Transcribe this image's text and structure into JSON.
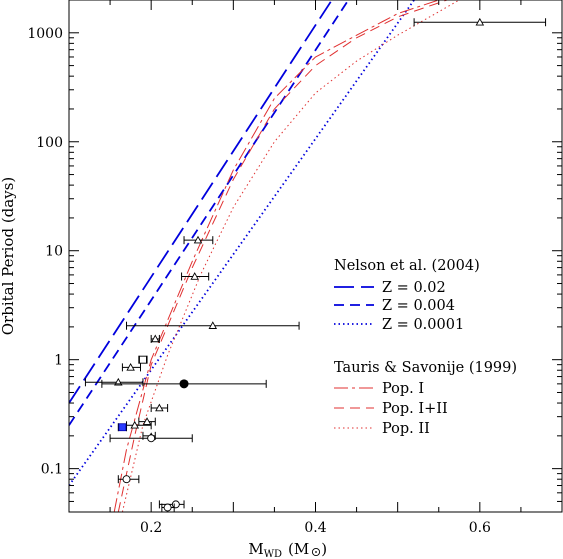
{
  "chart_data": {
    "type": "line",
    "title": "",
    "xlabel_main": "M",
    "xlabel_sub": "WD",
    "xlabel_unit_pre": "(M",
    "xlabel_unit_post": ")",
    "ylabel": "Orbital Period (days)",
    "xlim": [
      0.1,
      0.7
    ],
    "ylim": [
      0.04,
      2000
    ],
    "yscale": "log",
    "x_ticks": [
      0.2,
      0.4,
      0.6
    ],
    "x_tick_labels": [
      "0.2",
      "0.4",
      "0.6"
    ],
    "y_ticks": [
      0.1,
      1,
      10,
      100,
      1000
    ],
    "y_tick_labels": [
      "0.1",
      "1",
      "10",
      "100",
      "1000"
    ],
    "grid": false,
    "legend_placement": "right",
    "legend_groups": [
      {
        "title": "Nelson et al. (2004)",
        "entries": [
          "Z = 0.02",
          "Z = 0.004",
          "Z = 0.0001"
        ]
      },
      {
        "title": "Tauris & Savonije (1999)",
        "entries": [
          "Pop. I",
          "Pop. I+II",
          "Pop. II"
        ]
      }
    ],
    "series": [
      {
        "name": "Z = 0.02",
        "color": "#0000dd",
        "dash": "long",
        "x": [
          0.1,
          0.42
        ],
        "y": [
          0.4,
          2000
        ]
      },
      {
        "name": "Z = 0.004",
        "color": "#0000dd",
        "dash": "medium",
        "x": [
          0.1,
          0.44
        ],
        "y": [
          0.25,
          2000
        ]
      },
      {
        "name": "Z = 0.0001",
        "color": "#0000dd",
        "dash": "dotted",
        "x": [
          0.1,
          0.52
        ],
        "y": [
          0.07,
          2000
        ]
      },
      {
        "name": "Pop. I",
        "color": "#e03030",
        "dash": "longshort",
        "x": [
          0.155,
          0.17,
          0.2,
          0.25,
          0.3,
          0.35,
          0.4,
          0.45,
          0.5,
          0.55
        ],
        "y": [
          0.04,
          0.15,
          1.0,
          8.0,
          55,
          250,
          600,
          950,
          1500,
          2000
        ]
      },
      {
        "name": "Pop. I+II",
        "color": "#e03030",
        "dash": "medium",
        "x": [
          0.16,
          0.18,
          0.2,
          0.25,
          0.3,
          0.35,
          0.4,
          0.45,
          0.5,
          0.56
        ],
        "y": [
          0.04,
          0.2,
          0.9,
          7.0,
          45,
          200,
          500,
          900,
          1400,
          2000
        ]
      },
      {
        "name": "Pop. II",
        "color": "#e03030",
        "dash": "dotted",
        "x": [
          0.165,
          0.19,
          0.22,
          0.26,
          0.3,
          0.35,
          0.4,
          0.45,
          0.5,
          0.575
        ],
        "y": [
          0.04,
          0.25,
          1.1,
          6.0,
          25,
          100,
          280,
          550,
          950,
          2000
        ]
      }
    ],
    "points": [
      {
        "x": 0.6,
        "y": 1250,
        "xerr": [
          0.52,
          0.68
        ],
        "marker": "triangle"
      },
      {
        "x": 0.257,
        "y": 12.5,
        "xerr": [
          0.24,
          0.275
        ],
        "marker": "triangle"
      },
      {
        "x": 0.253,
        "y": 5.8,
        "xerr": [
          0.237,
          0.27
        ],
        "marker": "triangle"
      },
      {
        "x": 0.275,
        "y": 2.05,
        "xerr": [
          0.17,
          0.38
        ],
        "marker": "triangle"
      },
      {
        "x": 0.205,
        "y": 1.55,
        "xerr": [
          0.2,
          0.21
        ],
        "marker": "triangle"
      },
      {
        "x": 0.19,
        "y": 1.0,
        "xerr": [
          0.185,
          0.195
        ],
        "marker": "open-square"
      },
      {
        "x": 0.175,
        "y": 0.85,
        "xerr": [
          0.165,
          0.187
        ],
        "marker": "triangle"
      },
      {
        "x": 0.16,
        "y": 0.62,
        "xerr": [
          0.12,
          0.19
        ],
        "marker": "triangle"
      },
      {
        "x": 0.24,
        "y": 0.6,
        "xerr": [
          0.14,
          0.34
        ],
        "marker": "filled-circle"
      },
      {
        "x": 0.21,
        "y": 0.36,
        "xerr": [
          0.2,
          0.22
        ],
        "marker": "triangle"
      },
      {
        "x": 0.195,
        "y": 0.27,
        "xerr": [
          0.185,
          0.205
        ],
        "marker": "triangle"
      },
      {
        "x": 0.18,
        "y": 0.25,
        "xerr": [
          0.17,
          0.2
        ],
        "marker": "triangle"
      },
      {
        "x": 0.165,
        "y": 0.24,
        "xerr": [
          0.16,
          0.17
        ],
        "marker": "blue-square"
      },
      {
        "x": 0.2,
        "y": 0.2,
        "xerr": [
          0.19,
          0.205
        ],
        "marker": "filled-triangle"
      },
      {
        "x": 0.2,
        "y": 0.19,
        "xerr": [
          0.15,
          0.25
        ],
        "marker": "open-circle"
      },
      {
        "x": 0.17,
        "y": 0.08,
        "xerr": [
          0.16,
          0.185
        ],
        "marker": "open-circle"
      },
      {
        "x": 0.23,
        "y": 0.047,
        "xerr": [
          0.21,
          0.24
        ],
        "marker": "open-circle"
      },
      {
        "x": 0.22,
        "y": 0.044,
        "xerr": [
          0.213,
          0.228
        ],
        "marker": "open-circle"
      }
    ]
  }
}
